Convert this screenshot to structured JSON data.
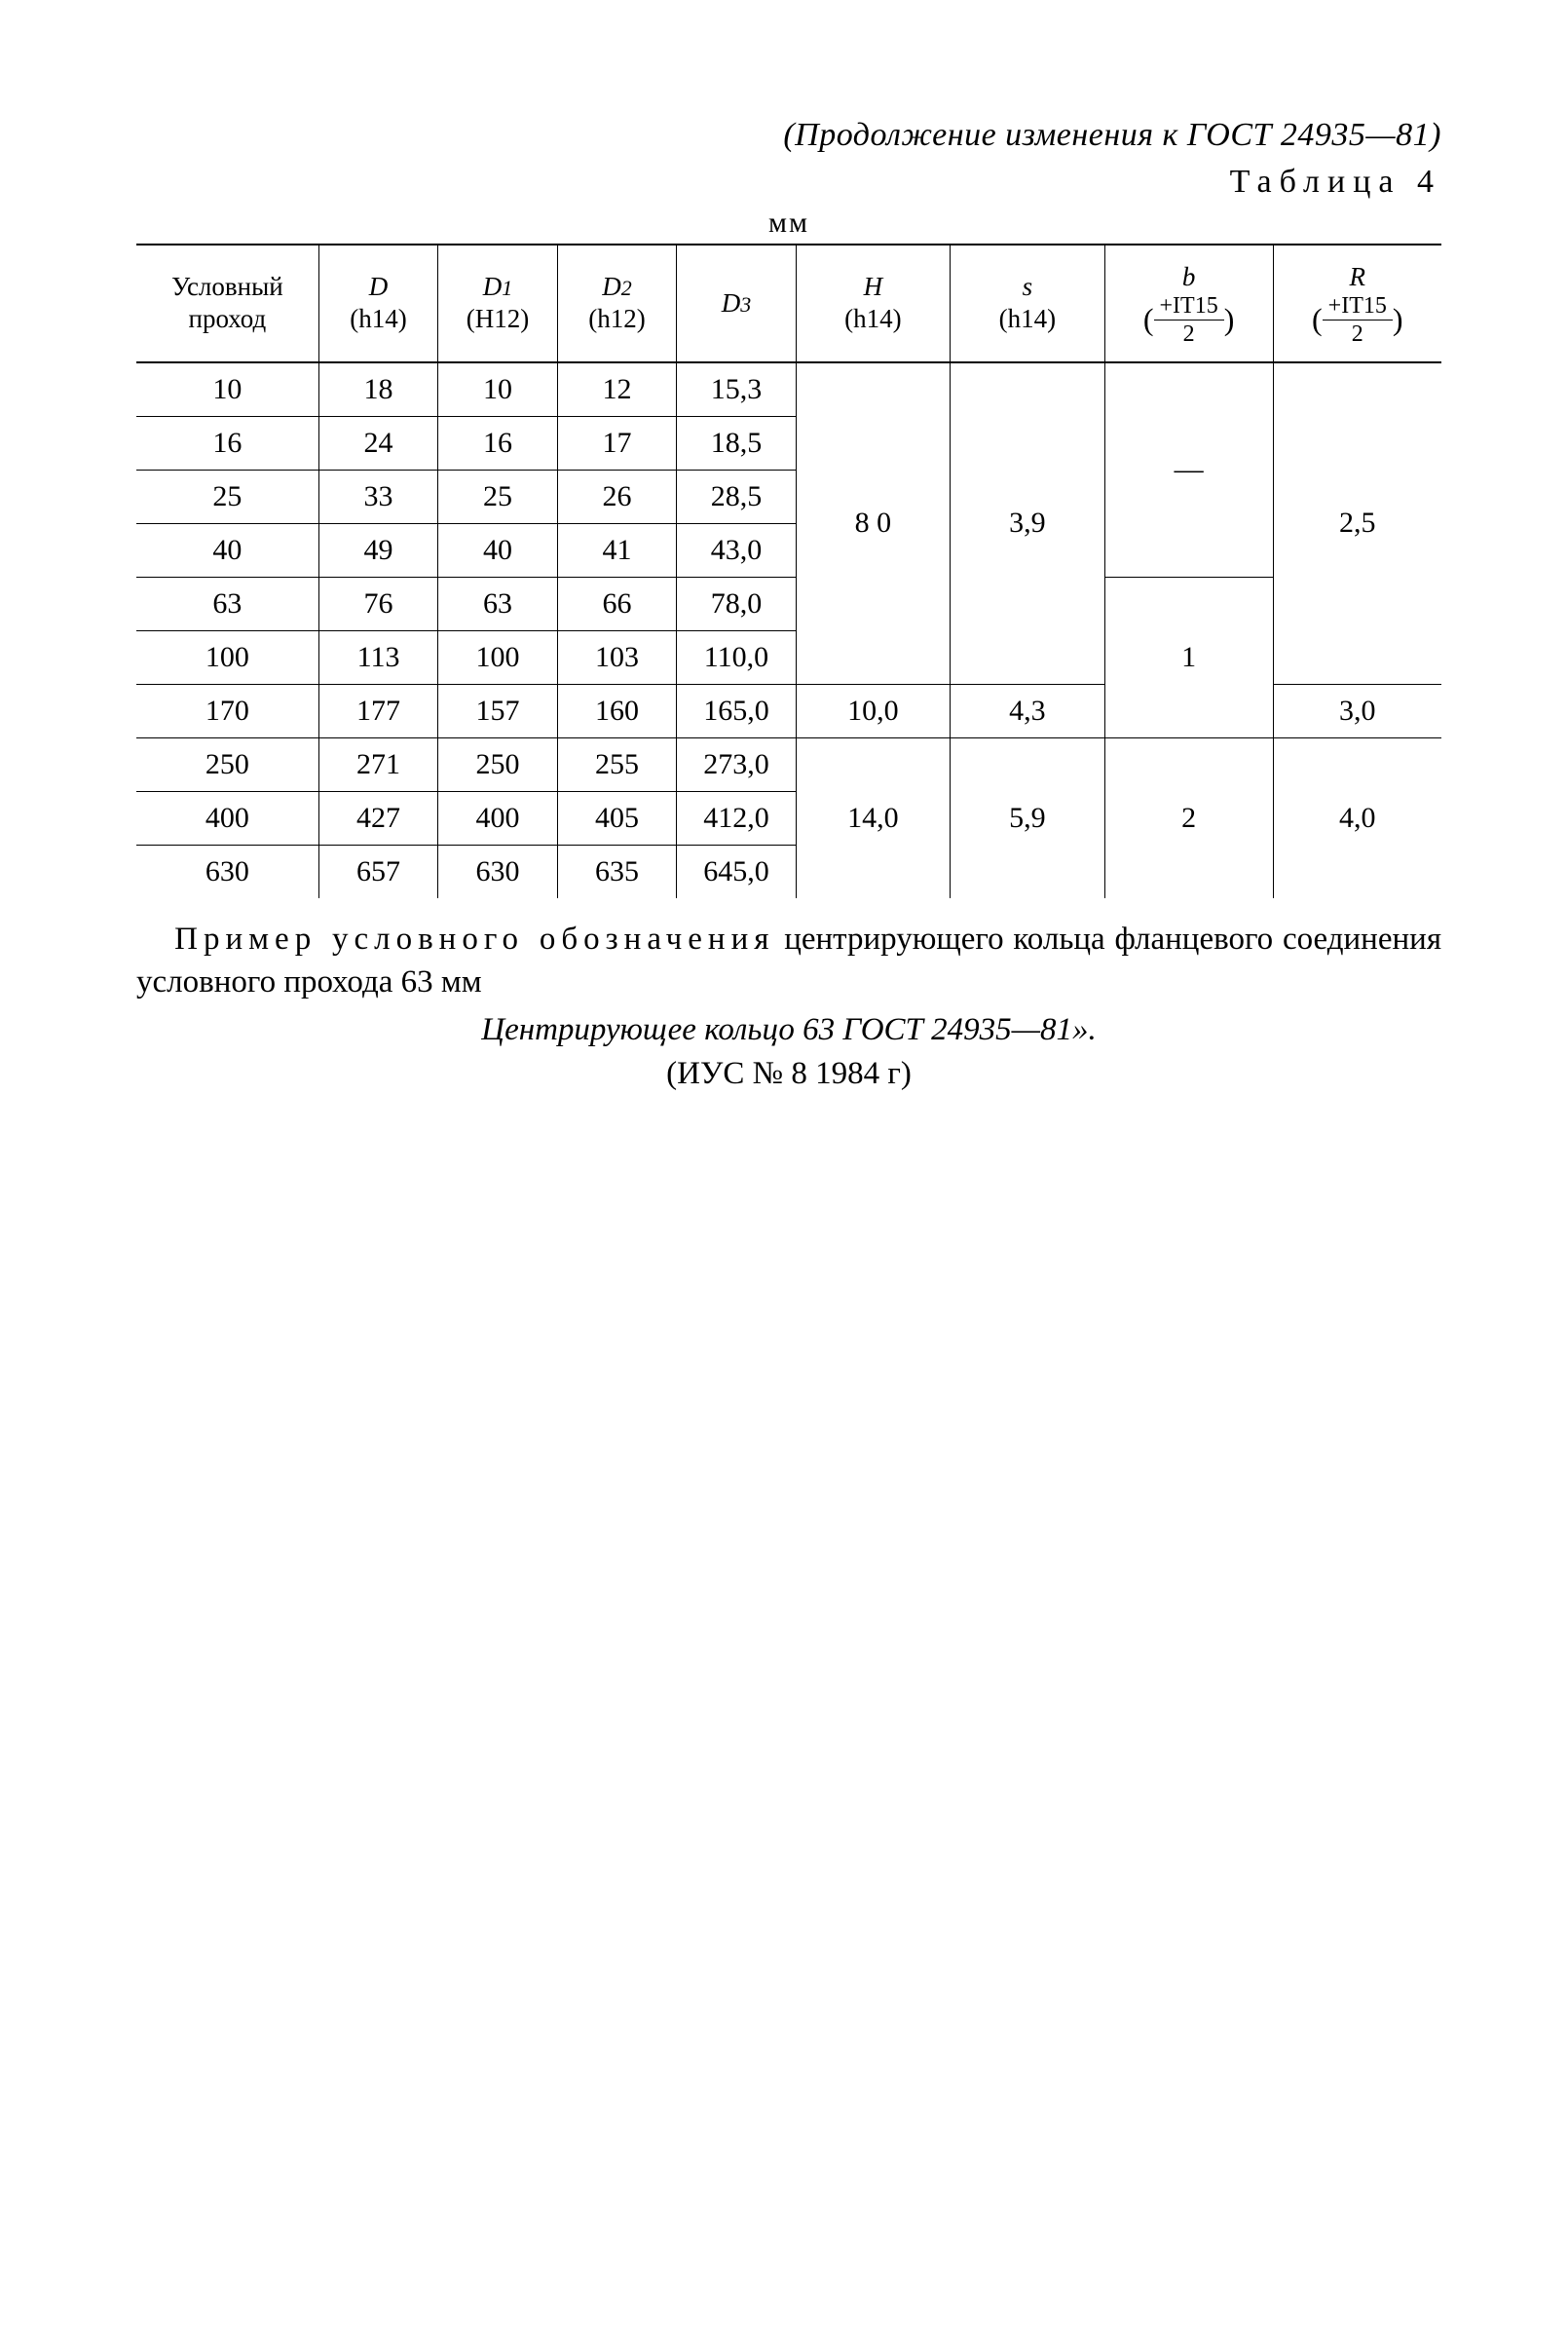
{
  "header": {
    "continuation": "(Продолжение изменения к ГОСТ 24935—81)",
    "table_label": "Таблица 4",
    "unit": "мм"
  },
  "columns": {
    "c0": "Условный проход",
    "c1_sym": "D",
    "c1_tol": "(h14)",
    "c2_sym": "D",
    "c2_sub": "1",
    "c2_tol": "(H12)",
    "c3_sym": "D",
    "c3_sub": "2",
    "c3_tol": "(h12)",
    "c4_sym": "D",
    "c4_sub": "3",
    "c5_sym": "H",
    "c5_tol": "(h14)",
    "c6_sym": "s",
    "c6_tol": "(h14)",
    "c7_sym": "b",
    "c7_frac_top": "+IT15",
    "c7_frac_bot": "2",
    "c8_sym": "R",
    "c8_frac_top": "+IT15",
    "c8_frac_bot": "2"
  },
  "rows": {
    "r0": {
      "c0": "10",
      "c1": "18",
      "c2": "10",
      "c3": "12",
      "c4": "15,3"
    },
    "r1": {
      "c0": "16",
      "c1": "24",
      "c2": "16",
      "c3": "17",
      "c4": "18,5"
    },
    "r2": {
      "c0": "25",
      "c1": "33",
      "c2": "25",
      "c3": "26",
      "c4": "28,5"
    },
    "r3": {
      "c0": "40",
      "c1": "49",
      "c2": "40",
      "c3": "41",
      "c4": "43,0"
    },
    "r4": {
      "c0": "63",
      "c1": "76",
      "c2": "63",
      "c3": "66",
      "c4": "78,0"
    },
    "r5": {
      "c0": "100",
      "c1": "113",
      "c2": "100",
      "c3": "103",
      "c4": "110,0"
    },
    "r6": {
      "c0": "170",
      "c1": "177",
      "c2": "157",
      "c3": "160",
      "c4": "165,0"
    },
    "r7": {
      "c0": "250",
      "c1": "271",
      "c2": "250",
      "c3": "255",
      "c4": "273,0"
    },
    "r8": {
      "c0": "400",
      "c1": "427",
      "c2": "400",
      "c3": "405",
      "c4": "412,0"
    },
    "r9": {
      "c0": "630",
      "c1": "657",
      "c2": "630",
      "c3": "635",
      "c4": "645,0"
    }
  },
  "merged": {
    "H_1": "8 0",
    "s_1": "3,9",
    "b_1": "—",
    "b_2": "1",
    "R_1": "2,5",
    "H_2": "10,0",
    "s_2": "4,3",
    "R_2": "3,0",
    "H_3": "14,0",
    "s_3": "5,9",
    "b_3": "2",
    "R_3": "4,0"
  },
  "footer": {
    "note_prefix": "Пример условного обозначения",
    "note_rest": " центрирующего кольца фланцевого соединения условного прохода 63 мм",
    "example": "Центрирующее кольцо 63 ГОСТ 24935—81».",
    "source": "(ИУС № 8 1984 г)"
  }
}
